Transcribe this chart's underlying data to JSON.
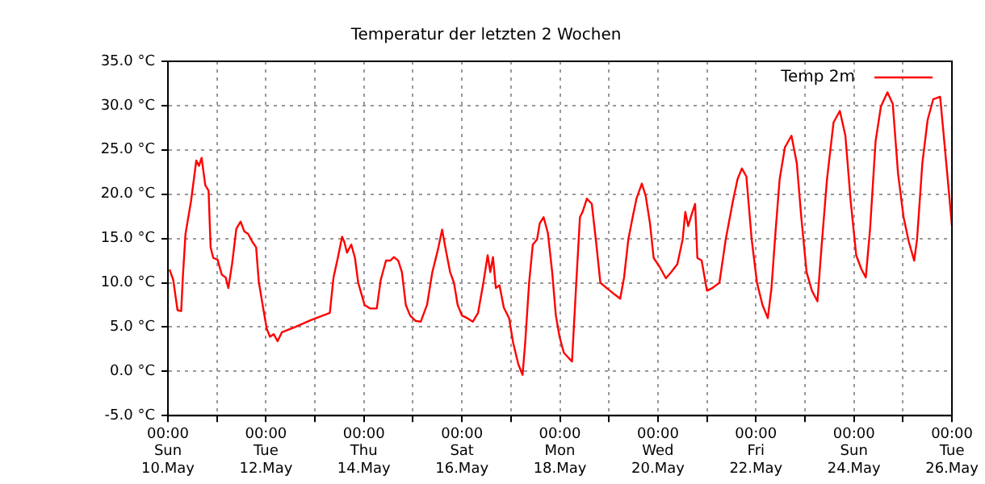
{
  "chart_data": {
    "type": "line",
    "title": "Temperatur der letzten 2 Wochen",
    "x": [
      "--05-10T00:48",
      "--05-10T02:36",
      "--05-10T04:42",
      "--05-10T06:30",
      "--05-10T07:18",
      "--05-10T08:36",
      "--05-10T11:18",
      "--05-10T13:54",
      "--05-10T15:12",
      "--05-10T16:30",
      "--05-10T18:18",
      "--05-10T19:54",
      "--05-10T20:54",
      "--05-10T22:12",
      "--05-11T00:18",
      "--05-11T02:24",
      "--05-11T04:18",
      "--05-11T05:36",
      "--05-11T07:24",
      "--05-11T09:30",
      "--05-11T11:36",
      "--05-11T13:24",
      "--05-11T15:18",
      "--05-11T17:24",
      "--05-11T19:12",
      "--05-11T20:30",
      "--05-11T22:36",
      "--05-12T00:24",
      "--05-12T02:00",
      "--05-12T03:48",
      "--05-12T05:42",
      "--05-12T07:48",
      "--05-12T14:18",
      "--05-12T22:12",
      "--05-13T07:18",
      "--05-13T09:06",
      "--05-13T11:12",
      "--05-13T13:18",
      "--05-13T14:24",
      "--05-13T15:42",
      "--05-13T17:48",
      "--05-13T19:36",
      "--05-13T21:12",
      "--05-14T00:18",
      "--05-14T02:54",
      "--05-14T06:18",
      "--05-14T08:12",
      "--05-14T10:48",
      "--05-14T12:54",
      "--05-14T14:42",
      "--05-14T16:48",
      "--05-14T18:36",
      "--05-14T20:30",
      "--05-14T22:36",
      "--05-15T01:12",
      "--05-15T03:48",
      "--05-15T06:54",
      "--05-15T09:30",
      "--05-15T12:12",
      "--05-15T14:18",
      "--05-15T16:06",
      "--05-15T18:12",
      "--05-15T20:06",
      "--05-15T21:54",
      "--05-16T00:00",
      "--05-16T02:36",
      "--05-16T05:18",
      "--05-16T07:54",
      "--05-16T10:30",
      "--05-16T12:36",
      "--05-16T13:54",
      "--05-16T15:12",
      "--05-16T16:36",
      "--05-16T18:24",
      "--05-16T20:30",
      "--05-16T23:06",
      "--05-17T01:00",
      "--05-17T03:36",
      "--05-17T05:42",
      "--05-17T07:00",
      "--05-17T08:54",
      "--05-17T10:42",
      "--05-17T12:48",
      "--05-17T14:06",
      "--05-17T16:00",
      "--05-17T18:06",
      "--05-17T20:12",
      "--05-17T22:00",
      "--05-17T23:48",
      "--05-18T01:54",
      "--05-18T05:54",
      "--05-18T08:00",
      "--05-18T09:48",
      "--05-18T11:06",
      "--05-18T13:12",
      "--05-18T15:36",
      "--05-18T17:42",
      "--05-18T19:48",
      "--05-18T22:54",
      "--05-19T02:06",
      "--05-19T05:30",
      "--05-19T07:24",
      "--05-19T09:30",
      "--05-19T11:36",
      "--05-19T13:30",
      "--05-19T16:06",
      "--05-19T18:00",
      "--05-19T20:06",
      "--05-19T21:54",
      "--05-20T00:48",
      "--05-20T03:54",
      "--05-20T06:30",
      "--05-20T09:30",
      "--05-20T12:06",
      "--05-20T13:24",
      "--05-20T14:48",
      "--05-20T16:54",
      "--05-20T18:12",
      "--05-20T19:18",
      "--05-20T21:24",
      "--05-21T00:00",
      "--05-21T02:36",
      "--05-21T06:06",
      "--05-21T09:12",
      "--05-21T12:42",
      "--05-21T15:00",
      "--05-21T17:06",
      "--05-21T19:18",
      "--05-21T21:54",
      "--05-22T00:30",
      "--05-22T03:12",
      "--05-22T05:48",
      "--05-22T07:36",
      "--05-22T09:30",
      "--05-22T11:36",
      "--05-22T14:12",
      "--05-22T17:24",
      "--05-22T20:00",
      "--05-22T22:12",
      "--05-23T00:48",
      "--05-23T03:24",
      "--05-23T06:06",
      "--05-23T08:12",
      "--05-23T10:48",
      "--05-23T14:00",
      "--05-23T17:06",
      "--05-23T19:48",
      "--05-23T22:24",
      "--05-24T01:06",
      "--05-24T03:42",
      "--05-24T05:48",
      "--05-24T07:54",
      "--05-24T10:36",
      "--05-24T13:12",
      "--05-24T16:24",
      "--05-24T19:00",
      "--05-24T21:36",
      "--05-25T00:18",
      "--05-25T02:54",
      "--05-25T05:30",
      "--05-25T06:54",
      "--05-25T09:30",
      "--05-25T12:06",
      "--05-25T14:48",
      "--05-25T18:12",
      "--05-25T19:30",
      "--05-25T22:12",
      "--05-26T00:00"
    ],
    "series": [
      {
        "name": "Temp 2m",
        "color": "#ff0000",
        "values": [
          11.5,
          10.3,
          6.9,
          6.8,
          10.6,
          15.5,
          19.2,
          23.8,
          23.2,
          24.1,
          21,
          20.4,
          14,
          12.8,
          12.6,
          10.9,
          10.6,
          9.4,
          12.1,
          16.1,
          16.9,
          15.8,
          15.5,
          14.6,
          14,
          10.1,
          7.2,
          4.8,
          3.9,
          4.2,
          3.4,
          4.4,
          5,
          5.8,
          6.6,
          10.6,
          12.8,
          15.2,
          14.6,
          13.4,
          14.3,
          12.8,
          10,
          7.5,
          7.1,
          7.1,
          10.3,
          12.5,
          12.5,
          12.9,
          12.5,
          11.2,
          7.5,
          6.3,
          5.7,
          5.6,
          7.5,
          11.2,
          13.7,
          16,
          13.7,
          11.2,
          10,
          7.5,
          6.3,
          6,
          5.6,
          6.6,
          10,
          13.1,
          11.2,
          12.9,
          9.4,
          9.7,
          7.2,
          6,
          3.3,
          0.8,
          -0.4,
          3.3,
          10,
          14.3,
          14.9,
          16.7,
          17.4,
          15.6,
          11.2,
          6.3,
          3.9,
          2.1,
          1.1,
          10,
          17.4,
          18,
          19.5,
          18.9,
          14.6,
          10,
          9.4,
          8.8,
          8.2,
          10.6,
          14.9,
          17.4,
          19.5,
          21.2,
          19.8,
          16.7,
          12.8,
          11.8,
          10.5,
          11.2,
          12.1,
          14.9,
          18,
          16.4,
          18,
          18.9,
          12.8,
          12.5,
          9.1,
          9.4,
          10,
          14.9,
          19.2,
          21.7,
          22.9,
          22,
          14.9,
          10,
          7.5,
          6,
          9.4,
          15.5,
          21.7,
          25.3,
          26.6,
          23.5,
          17.4,
          11.2,
          9.1,
          7.9,
          14.3,
          21.7,
          28.1,
          29.4,
          26.6,
          19.2,
          13.1,
          11.5,
          10.6,
          16.1,
          26,
          29.9,
          31.5,
          30.2,
          22.3,
          17.4,
          14.6,
          12.5,
          14.9,
          23.5,
          28.4,
          30.7,
          31,
          27.8,
          21,
          16.4
        ]
      }
    ],
    "xlim": [
      "--05-10T00:00",
      "--05-26T00:00"
    ],
    "xticks": [
      {
        "value": "--05-10T00:00",
        "label": "00:00\nSun\n10.May"
      },
      {
        "value": "--05-11T00:00",
        "label": null
      },
      {
        "value": "--05-12T00:00",
        "label": "00:00\nTue\n12.May"
      },
      {
        "value": "--05-13T00:00",
        "label": null
      },
      {
        "value": "--05-14T00:00",
        "label": "00:00\nThu\n14.May"
      },
      {
        "value": "--05-15T00:00",
        "label": null
      },
      {
        "value": "--05-16T00:00",
        "label": "00:00\nSat\n16.May"
      },
      {
        "value": "--05-17T00:00",
        "label": null
      },
      {
        "value": "--05-18T00:00",
        "label": "00:00\nMon\n18.May"
      },
      {
        "value": "--05-19T00:00",
        "label": null
      },
      {
        "value": "--05-20T00:00",
        "label": "00:00\nWed\n20.May"
      },
      {
        "value": "--05-21T00:00",
        "label": null
      },
      {
        "value": "--05-22T00:00",
        "label": "00:00\nFri\n22.May"
      },
      {
        "value": "--05-23T00:00",
        "label": null
      },
      {
        "value": "--05-24T00:00",
        "label": "00:00\nSun\n24.May"
      },
      {
        "value": "--05-25T00:00",
        "label": null
      },
      {
        "value": "--05-26T00:00",
        "label": "00:00\nTue\n26.May"
      }
    ],
    "ylim": [
      -5,
      35
    ],
    "yticks": [
      {
        "value": -5,
        "label": "-5.0 °C"
      },
      {
        "value": 0,
        "label": "0.0 °C"
      },
      {
        "value": 5,
        "label": "5.0 °C"
      },
      {
        "value": 10,
        "label": "10.0 °C"
      },
      {
        "value": 15,
        "label": "15.0 °C"
      },
      {
        "value": 20,
        "label": "20.0 °C"
      },
      {
        "value": 25,
        "label": "25.0 °C"
      },
      {
        "value": 30,
        "label": "30.0 °C"
      },
      {
        "value": 35,
        "label": "35.0 °C"
      }
    ],
    "grid": true,
    "legend": "top right",
    "marker": "none",
    "line_style": "solid"
  }
}
